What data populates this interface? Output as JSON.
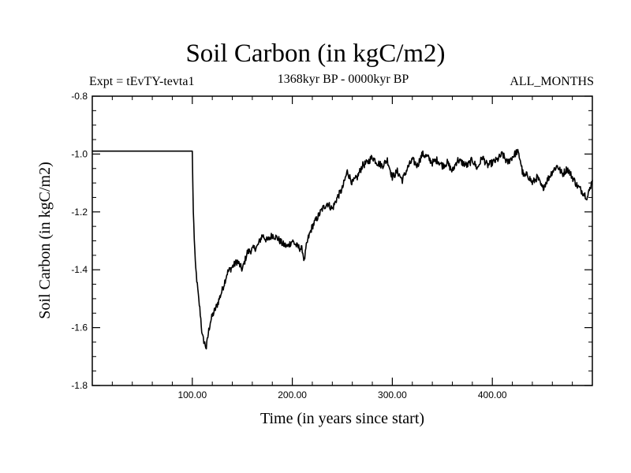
{
  "chart_data": {
    "type": "line",
    "title": "Soil Carbon (in kgC/m2)",
    "subtitle_left": "Expt = tEvTY-tevta1",
    "subtitle_center": "1368kyr BP - 0000kyr BP",
    "subtitle_right": "ALL_MONTHS",
    "xlabel": "Time (in years since start)",
    "ylabel": "Soil Carbon (in kgC/m2)",
    "xlim": [
      0,
      500
    ],
    "ylim": [
      -1.8,
      -0.8
    ],
    "x_ticks": [
      100,
      200,
      300,
      400
    ],
    "x_tick_labels": [
      "100.00",
      "200.00",
      "300.00",
      "400.00"
    ],
    "y_ticks": [
      -1.8,
      -1.6,
      -1.4,
      -1.2,
      -1.0,
      -0.8
    ],
    "y_tick_labels": [
      "-1.8",
      "-1.6",
      "-1.4",
      "-1.2",
      "-1.0",
      "-0.8"
    ],
    "series": [
      {
        "name": "Soil Carbon",
        "color": "#000000",
        "x": [
          0,
          5,
          99,
          100,
          101,
          103,
          106,
          108,
          110,
          112,
          114,
          116,
          118,
          120,
          125,
          130,
          135,
          140,
          145,
          150,
          155,
          160,
          165,
          170,
          175,
          180,
          185,
          190,
          195,
          200,
          205,
          210,
          212,
          214,
          216,
          220,
          225,
          230,
          235,
          240,
          245,
          250,
          255,
          260,
          265,
          270,
          275,
          280,
          285,
          290,
          295,
          300,
          305,
          310,
          315,
          320,
          325,
          330,
          335,
          340,
          345,
          350,
          355,
          360,
          365,
          370,
          375,
          380,
          385,
          390,
          395,
          400,
          405,
          410,
          415,
          420,
          425,
          428,
          430,
          432,
          435,
          440,
          445,
          450,
          455,
          460,
          465,
          470,
          475,
          480,
          485,
          490,
          495,
          500
        ],
        "values": [
          -0.99,
          -0.99,
          -0.99,
          -0.99,
          -1.2,
          -1.38,
          -1.49,
          -1.55,
          -1.63,
          -1.65,
          -1.67,
          -1.62,
          -1.58,
          -1.56,
          -1.52,
          -1.47,
          -1.41,
          -1.39,
          -1.37,
          -1.4,
          -1.34,
          -1.33,
          -1.32,
          -1.28,
          -1.3,
          -1.28,
          -1.29,
          -1.31,
          -1.32,
          -1.3,
          -1.32,
          -1.33,
          -1.37,
          -1.32,
          -1.29,
          -1.25,
          -1.22,
          -1.19,
          -1.17,
          -1.19,
          -1.15,
          -1.12,
          -1.06,
          -1.1,
          -1.08,
          -1.04,
          -1.03,
          -1.01,
          -1.03,
          -1.04,
          -1.02,
          -1.08,
          -1.06,
          -1.09,
          -1.05,
          -1.02,
          -1.04,
          -1.0,
          -1.01,
          -1.03,
          -1.02,
          -1.04,
          -1.03,
          -1.06,
          -1.02,
          -1.03,
          -1.04,
          -1.02,
          -1.05,
          -1.01,
          -1.04,
          -1.03,
          -1.02,
          -1.0,
          -1.03,
          -1.01,
          -0.99,
          -1.02,
          -1.06,
          -1.08,
          -1.07,
          -1.1,
          -1.08,
          -1.12,
          -1.09,
          -1.06,
          -1.04,
          -1.07,
          -1.05,
          -1.08,
          -1.11,
          -1.13,
          -1.15,
          -1.09
        ]
      }
    ]
  }
}
